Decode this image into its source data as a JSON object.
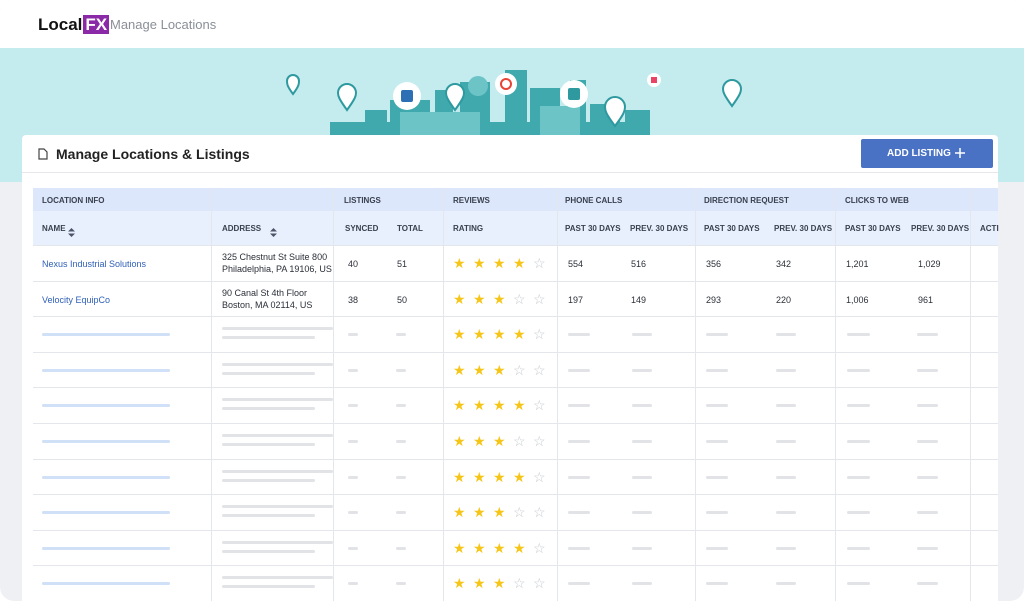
{
  "header": {
    "logo": {
      "text": "Local",
      "badge": "FX"
    },
    "title": "Manage Locations"
  },
  "panel": {
    "title": "Manage Locations & Listings",
    "button": "ADD LISTING"
  },
  "table": {
    "groups": [
      "LOCATION INFO",
      "LISTINGS",
      "REVIEWS",
      "PHONE CALLS",
      "DIRECTION REQUEST",
      "CLICKS TO WEB"
    ],
    "columns": [
      "NAME",
      "ADDRESS",
      "SYNCED",
      "TOTAL",
      "RATING",
      "PAST 30 DAYS",
      "PREV. 30 DAYS",
      "PAST 30 DAYS",
      "PREV. 30 DAYS",
      "PAST 30 DAYS",
      "PREV. 30 DAYS",
      "ACTI"
    ],
    "rating_max": 5,
    "rows": [
      {
        "name": "Nexus Industrial Solutions",
        "address": [
          "325 Chestnut St Suite 800",
          "Philadelphia, PA 19106, US"
        ],
        "synced": "40",
        "total": "51",
        "rating": 4,
        "phone": [
          "554",
          "516"
        ],
        "direction": [
          "356",
          "342"
        ],
        "clicks": [
          "1,201",
          "1,029"
        ]
      },
      {
        "name": "Velocity EquipCo",
        "address": [
          "90 Canal St 4th Floor",
          "Boston, MA 02114, US"
        ],
        "synced": "38",
        "total": "50",
        "rating": 3,
        "phone": [
          "197",
          "149"
        ],
        "direction": [
          "293",
          "220"
        ],
        "clicks": [
          "1,006",
          "961"
        ]
      }
    ],
    "placeholder_ratings": [
      4,
      3,
      4,
      3,
      4,
      3,
      4,
      3
    ]
  }
}
